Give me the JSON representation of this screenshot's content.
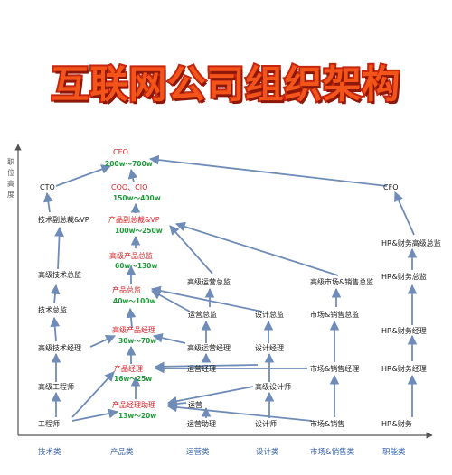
{
  "title": "互联网公司组织架构",
  "y_axis_label": [
    "职",
    "位",
    "高",
    "度"
  ],
  "categories": [
    "技术类",
    "产品类",
    "运营类",
    "设计类",
    "市场&销售类",
    "职能类"
  ],
  "nodes": {
    "ceo": "CEO",
    "ceo_salary": "200w～700w",
    "cto": "CTO",
    "coo_cio": "COO、CIO",
    "coo_cio_salary": "150w～400w",
    "cfo": "CFO",
    "tech_vp": "技术副总裁&VP",
    "prod_vp": "产品副总裁&VP",
    "prod_vp_salary": "100w～250w",
    "hr_senior_director": "HR&财务高级总监",
    "senior_tech_director": "高级技术总监",
    "senior_prod_director": "高级产品总监",
    "senior_prod_director_salary": "60w～130w",
    "hr_director": "HR&财务总监",
    "senior_ops_director": "高级运营总监",
    "senior_mkt_director": "高级市场&销售总监",
    "tech_director": "技术总监",
    "prod_director": "产品总监",
    "prod_director_salary": "40w～100w",
    "ops_director": "运营总监",
    "design_director": "设计总监",
    "mkt_director": "市场&销售总监",
    "senior_prod_manager": "高级产品经理",
    "senior_prod_manager_salary": "30w～70w",
    "hr_manager": "HR&财务经理",
    "senior_tech_manager": "高级技术经理",
    "senior_ops_manager": "高级运营经理",
    "design_manager": "设计经理",
    "prod_manager": "产品经理",
    "prod_manager_salary": "16w～25w",
    "ops_manager": "运营经理",
    "mkt_manager": "市场&销售经理",
    "hr_manager2": "HR&财务经理",
    "senior_engineer": "高级工程师",
    "prod_assistant": "产品经理助理",
    "prod_assistant_salary": "13w～20w",
    "senior_designer": "高级设计师",
    "ops": "运营",
    "engineer": "工程师",
    "ops_assistant": "运营助理",
    "designer": "设计师",
    "sales": "市场&销售",
    "hr_finance": "HR&财务"
  },
  "colors": {
    "title_fill": "#f3541a",
    "title_stroke": "#c4260f",
    "red_text": "#d81f26",
    "salary_text": "#1f9a3a",
    "category_text": "#3b67b3",
    "edge": "#6f8cb8"
  }
}
